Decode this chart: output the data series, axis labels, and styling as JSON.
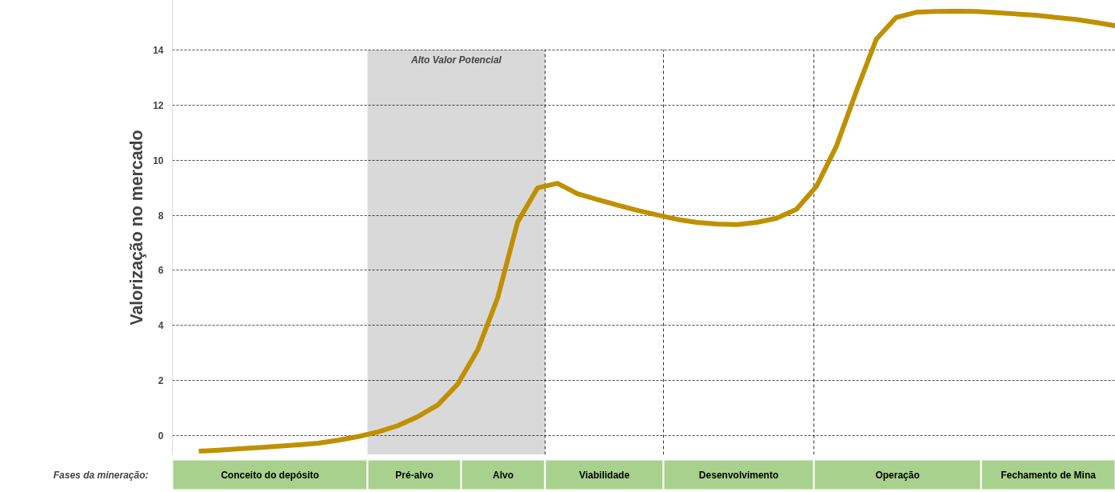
{
  "chart_data": {
    "type": "line",
    "ylabel": "Valorização no mercado",
    "xlabel": "Fases da mineração:",
    "categories": [
      null,
      null,
      null,
      null,
      null,
      null,
      null,
      null,
      null,
      null,
      null,
      null,
      null,
      null,
      null,
      null,
      null,
      null,
      null,
      null,
      null,
      null,
      null,
      null,
      null,
      null,
      null,
      null,
      null,
      null,
      null,
      null,
      null,
      null,
      null,
      null,
      null,
      null,
      null,
      null,
      null,
      null,
      null,
      null,
      null,
      null,
      null
    ],
    "series": [
      {
        "color": "#bf9000",
        "values": [
          -0.57,
          -0.53,
          -0.48,
          -0.44,
          -0.39,
          -0.34,
          -0.28,
          -0.17,
          -0.04,
          0.13,
          0.36,
          0.69,
          1.11,
          1.87,
          3.11,
          5.0,
          7.75,
          8.99,
          9.16,
          8.78,
          8.57,
          8.37,
          8.18,
          8.01,
          7.85,
          7.74,
          7.68,
          7.66,
          7.74,
          7.89,
          8.22,
          9.05,
          10.51,
          12.5,
          14.39,
          15.18,
          15.37,
          15.4,
          15.41,
          15.4,
          15.36,
          15.31,
          15.26,
          15.18,
          15.11,
          15.0,
          14.88
        ]
      }
    ],
    "ylim": [
      -0.7,
      15.8
    ],
    "yticks": [
      0,
      2,
      4,
      6,
      8,
      10,
      12,
      14
    ],
    "grid": "y",
    "line_style": "solid",
    "tick_labels": "y",
    "annotations": [
      "Alto Valor Potencial",
      "Conceito do depósito",
      "Pré-alvo",
      "Alvo",
      "Viabilidade",
      "Desenvolvimento",
      "Operação",
      "Fechamento de Mina"
    ]
  }
}
